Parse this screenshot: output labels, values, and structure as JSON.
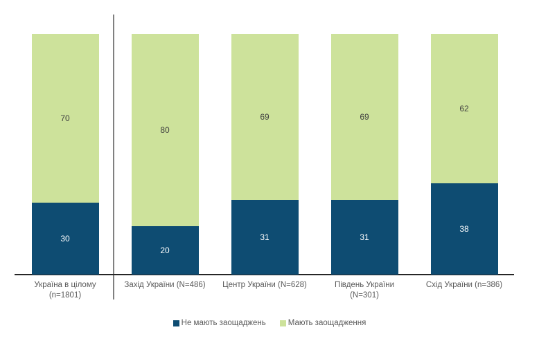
{
  "chart_data": {
    "type": "bar",
    "subtype": "stacked-100-percent",
    "title": "",
    "xlabel": "",
    "ylabel": "",
    "ylim": [
      0,
      100
    ],
    "grid": false,
    "legend_position": "bottom",
    "value_labels": true,
    "categories": [
      "Україна в цілому\n(n=1801)",
      "Захід України (N=486)",
      "Центр України (N=628)",
      "Південь України\n(N=301)",
      "Схід України (n=386)"
    ],
    "series": [
      {
        "name": "Не мають заощаджень",
        "color": "#0e4c72",
        "values": [
          30,
          20,
          31,
          31,
          38
        ]
      },
      {
        "name": "Мають заощадження",
        "color": "#cde29b",
        "values": [
          70,
          80,
          69,
          69,
          62
        ]
      }
    ]
  },
  "colors": {
    "axis_line": "#262626",
    "group_divider": "#808080",
    "label_text": "#595959",
    "value_on_green": "#404040",
    "value_on_blue": "#ffffff",
    "background": "#ffffff"
  }
}
